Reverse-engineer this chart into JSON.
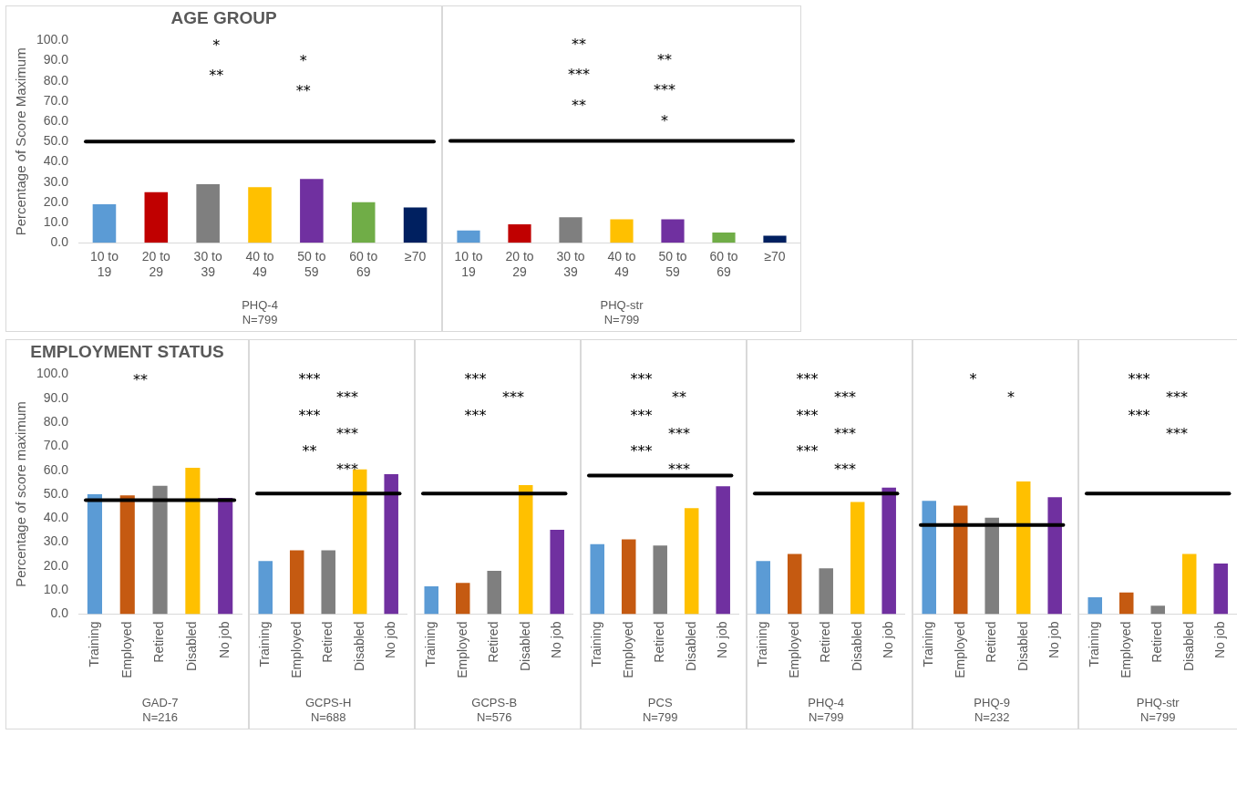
{
  "chart_data": [
    {
      "type": "bar",
      "title": "AGE GROUP",
      "ylabel": "Percentage of Score Maximum",
      "xlabel": "PHQ-4\nN=799",
      "categories": [
        "10 to 19",
        "20 to 29",
        "30 to 39",
        "40 to 49",
        "50 to 59",
        "60 to 69",
        "≥70"
      ],
      "values": [
        19,
        25,
        29,
        27.5,
        31.5,
        20,
        17.5
      ],
      "colors": [
        "#5b9bd5",
        "#c00000",
        "#7f7f7f",
        "#ffc000",
        "#7030a0",
        "#70ad47",
        "#002060"
      ],
      "ylim": [
        0,
        100
      ],
      "yticks": [
        {
          "value": 0,
          "label": "0.0"
        },
        {
          "value": 10,
          "label": "10.0"
        },
        {
          "value": 20,
          "label": "20.0"
        },
        {
          "value": 30,
          "label": "30.0"
        },
        {
          "value": 40,
          "label": "40.0"
        },
        {
          "value": 50,
          "label": "50.0"
        },
        {
          "value": 60,
          "label": "60.0"
        },
        {
          "value": 70,
          "label": "70.0"
        },
        {
          "value": 80,
          "label": "80.0"
        },
        {
          "value": 90,
          "label": "90.0"
        },
        {
          "value": 100,
          "label": "100.0"
        }
      ],
      "ref_lines": [
        {
          "axis": "y",
          "value": 50,
          "color": "#000000"
        }
      ],
      "annotations": [
        "*",
        "*",
        "**",
        "**"
      ]
    },
    {
      "type": "bar",
      "xlabel": "PHQ-str\nN=799",
      "categories": [
        "10 to 19",
        "20 to 29",
        "30 to 39",
        "40 to 49",
        "50 to 59",
        "60 to 69",
        "≥70"
      ],
      "values": [
        6,
        9,
        12.5,
        11.5,
        11.5,
        5,
        3.5
      ],
      "colors": [
        "#5b9bd5",
        "#c00000",
        "#7f7f7f",
        "#ffc000",
        "#7030a0",
        "#70ad47",
        "#002060"
      ],
      "ylim": [
        0,
        100
      ],
      "tick_labels": "x",
      "ref_lines": [
        {
          "axis": "y",
          "value": 50,
          "color": "#000000"
        }
      ],
      "annotations": [
        "**",
        "**",
        "***",
        "***",
        "**",
        "*"
      ]
    },
    {
      "type": "bar",
      "title": "EMPLOYMENT STATUS",
      "ylabel": "Percentage of score maximum",
      "xlabel": "GAD-7\nN=216",
      "categories": [
        "Training",
        "Employed",
        "Retired",
        "Disabled",
        "No job"
      ],
      "values": [
        50,
        49.5,
        53.5,
        61,
        48.5
      ],
      "colors": [
        "#5b9bd5",
        "#c55a11",
        "#7f7f7f",
        "#ffc000",
        "#7030a0"
      ],
      "ylim": [
        0,
        100
      ],
      "yticks": [
        {
          "value": 0,
          "label": "0.0"
        },
        {
          "value": 10,
          "label": "10.0"
        },
        {
          "value": 20,
          "label": "20.0"
        },
        {
          "value": 30,
          "label": "30.0"
        },
        {
          "value": 40,
          "label": "40.0"
        },
        {
          "value": 50,
          "label": "50.0"
        },
        {
          "value": 60,
          "label": "60.0"
        },
        {
          "value": 70,
          "label": "70.0"
        },
        {
          "value": 80,
          "label": "80.0"
        },
        {
          "value": 90,
          "label": "90.0"
        },
        {
          "value": 100,
          "label": "100.0"
        }
      ],
      "ref_lines": [
        {
          "axis": "y",
          "value": 47.5,
          "color": "#000000"
        }
      ],
      "annotations": [
        "**"
      ]
    },
    {
      "type": "bar",
      "xlabel": "GCPS-H\nN=688",
      "categories": [
        "Training",
        "Employed",
        "Retired",
        "Disabled",
        "No job"
      ],
      "values": [
        22,
        26.5,
        26.5,
        60,
        58
      ],
      "colors": [
        "#5b9bd5",
        "#c55a11",
        "#7f7f7f",
        "#ffc000",
        "#7030a0"
      ],
      "ylim": [
        0,
        100
      ],
      "tick_labels": "x",
      "ref_lines": [
        {
          "axis": "y",
          "value": 50,
          "color": "#000000"
        }
      ],
      "annotations": [
        "***",
        "***",
        "***",
        "***",
        "**",
        "***"
      ]
    },
    {
      "type": "bar",
      "xlabel": "GCPS-B\nN=576",
      "categories": [
        "Training",
        "Employed",
        "Retired",
        "Disabled",
        "No job"
      ],
      "values": [
        11.5,
        13,
        18,
        53.5,
        35
      ],
      "colors": [
        "#5b9bd5",
        "#c55a11",
        "#7f7f7f",
        "#ffc000",
        "#7030a0"
      ],
      "ylim": [
        0,
        100
      ],
      "tick_labels": "x",
      "ref_lines": [
        {
          "axis": "y",
          "value": 50,
          "color": "#000000"
        }
      ],
      "annotations": [
        "***",
        "***",
        "***"
      ]
    },
    {
      "type": "bar",
      "xlabel": "PCS\nN=799",
      "categories": [
        "Training",
        "Employed",
        "Retired",
        "Disabled",
        "No job"
      ],
      "values": [
        29,
        31,
        28.5,
        44,
        53
      ],
      "colors": [
        "#5b9bd5",
        "#c55a11",
        "#7f7f7f",
        "#ffc000",
        "#7030a0"
      ],
      "ylim": [
        0,
        100
      ],
      "tick_labels": "x",
      "ref_lines": [
        {
          "axis": "y",
          "value": 57.5,
          "color": "#000000"
        }
      ],
      "annotations": [
        "***",
        "**",
        "***",
        "***",
        "***",
        "***"
      ]
    },
    {
      "type": "bar",
      "xlabel": "PHQ-4\nN=799",
      "categories": [
        "Training",
        "Employed",
        "Retired",
        "Disabled",
        "No job"
      ],
      "values": [
        22,
        25,
        19,
        46.5,
        52.5
      ],
      "colors": [
        "#5b9bd5",
        "#c55a11",
        "#7f7f7f",
        "#ffc000",
        "#7030a0"
      ],
      "ylim": [
        0,
        100
      ],
      "tick_labels": "x",
      "ref_lines": [
        {
          "axis": "y",
          "value": 50,
          "color": "#000000"
        }
      ],
      "annotations": [
        "***",
        "***",
        "***",
        "***",
        "***",
        "***"
      ]
    },
    {
      "type": "bar",
      "xlabel": "PHQ-9\nN=232",
      "categories": [
        "Training",
        "Employed",
        "Retired",
        "Disabled",
        "No job"
      ],
      "values": [
        47,
        45,
        40,
        55,
        48.5
      ],
      "colors": [
        "#5b9bd5",
        "#c55a11",
        "#7f7f7f",
        "#ffc000",
        "#7030a0"
      ],
      "ylim": [
        0,
        100
      ],
      "tick_labels": "x",
      "ref_lines": [
        {
          "axis": "y",
          "value": 37,
          "color": "#000000"
        }
      ],
      "annotations": [
        "*",
        "*"
      ]
    },
    {
      "type": "bar",
      "xlabel": "PHQ-str\nN=799",
      "categories": [
        "Training",
        "Employed",
        "Retired",
        "Disabled",
        "No job"
      ],
      "values": [
        7,
        9,
        3.5,
        25,
        21
      ],
      "colors": [
        "#5b9bd5",
        "#c55a11",
        "#7f7f7f",
        "#ffc000",
        "#7030a0"
      ],
      "ylim": [
        0,
        100
      ],
      "tick_labels": "x",
      "ref_lines": [
        {
          "axis": "y",
          "value": 50,
          "color": "#000000"
        }
      ],
      "annotations": [
        "***",
        "***",
        "***",
        "***"
      ]
    }
  ]
}
